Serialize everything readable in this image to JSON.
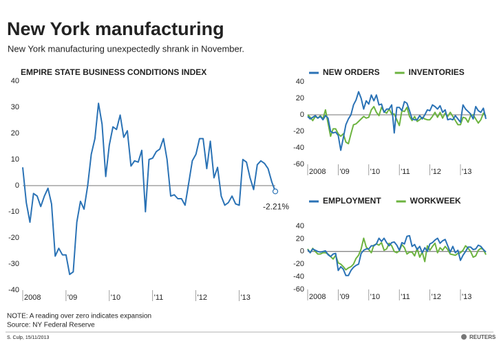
{
  "header": {
    "title": "New York manufacturing",
    "subtitle": "New York manufacturing unexpectedly shrank in November."
  },
  "chart_data": [
    {
      "type": "line",
      "title": "EMPIRE STATE BUSINESS CONDITIONS INDEX",
      "categories": [
        "2008",
        null,
        null,
        null,
        null,
        null,
        null,
        null,
        null,
        null,
        null,
        null,
        "'09",
        null,
        null,
        null,
        null,
        null,
        null,
        null,
        null,
        null,
        null,
        null,
        "'10",
        null,
        null,
        null,
        null,
        null,
        null,
        null,
        null,
        null,
        null,
        null,
        "'11",
        null,
        null,
        null,
        null,
        null,
        null,
        null,
        null,
        null,
        null,
        null,
        "'12",
        null,
        null,
        null,
        null,
        null,
        null,
        null,
        null,
        null,
        null,
        null,
        "'13",
        null,
        null,
        null,
        null,
        null,
        null,
        null,
        null,
        null,
        null
      ],
      "values": [
        7,
        -6.5,
        -14,
        -3,
        -4,
        -8,
        -4,
        -1,
        -7,
        -27,
        -24,
        -26.5,
        -26.5,
        -34,
        -33,
        -14,
        -6,
        -9,
        0,
        12,
        18,
        31.5,
        23.5,
        3.5,
        15.5,
        22.5,
        21.5,
        27,
        18.5,
        21,
        7.5,
        9.5,
        9,
        13.5,
        -10,
        10,
        10.5,
        13,
        14,
        18,
        10,
        -4,
        -3.5,
        -5,
        -5,
        -7.5,
        1,
        9.5,
        12,
        18,
        18,
        6.5,
        17,
        3,
        7,
        -4,
        -7.5,
        -6.5,
        -4,
        -7,
        -7.5,
        10,
        9,
        3,
        -1.5,
        8,
        9.5,
        8.5,
        6.5,
        1.5,
        -2.21
      ],
      "value_labels": [
        null,
        null,
        null,
        null,
        null,
        null,
        null,
        null,
        null,
        null,
        null,
        null,
        null,
        null,
        null,
        null,
        null,
        null,
        null,
        null,
        null,
        null,
        null,
        null,
        null,
        null,
        null,
        null,
        null,
        null,
        null,
        null,
        null,
        null,
        null,
        null,
        null,
        null,
        null,
        null,
        null,
        null,
        null,
        null,
        null,
        null,
        null,
        null,
        null,
        null,
        null,
        null,
        null,
        null,
        null,
        null,
        null,
        null,
        null,
        null,
        null,
        null,
        null,
        null,
        null,
        null,
        null,
        null,
        null,
        null,
        "-2.21%"
      ],
      "color": "#2a72b5",
      "ylim": [
        -40,
        40
      ],
      "yticks": [
        -40,
        -30,
        -20,
        -10,
        0,
        10,
        20,
        30,
        40
      ]
    },
    {
      "type": "line",
      "categories": [
        "2008",
        null,
        null,
        null,
        null,
        null,
        null,
        null,
        null,
        null,
        null,
        null,
        "'09",
        null,
        null,
        null,
        null,
        null,
        null,
        null,
        null,
        null,
        null,
        null,
        "'10",
        null,
        null,
        null,
        null,
        null,
        null,
        null,
        null,
        null,
        null,
        null,
        "'11",
        null,
        null,
        null,
        null,
        null,
        null,
        null,
        null,
        null,
        null,
        null,
        "'12",
        null,
        null,
        null,
        null,
        null,
        null,
        null,
        null,
        null,
        null,
        null,
        "'13",
        null,
        null,
        null,
        null,
        null,
        null,
        null,
        null,
        null,
        null
      ],
      "series": [
        {
          "name": "NEW ORDERS",
          "color": "#2a72b5",
          "values": [
            -2,
            -5,
            -3,
            -1,
            -4,
            -2,
            -6,
            -1,
            -4,
            -20,
            -22,
            -21,
            -25,
            -43,
            -28,
            -12,
            -5,
            0,
            12,
            18,
            28,
            20,
            7,
            17,
            13,
            24,
            17,
            24,
            12,
            13,
            3,
            7,
            7,
            12,
            -22,
            9,
            9,
            5,
            16,
            14,
            5,
            -5,
            -6,
            -6,
            -1,
            -5,
            0,
            6,
            5,
            12,
            10,
            7,
            11,
            3,
            6,
            -6,
            -5,
            -6,
            -1,
            -5,
            -9,
            12,
            7,
            4,
            1,
            -5,
            10,
            5,
            3,
            8,
            -5
          ]
        },
        {
          "name": "INVENTORIES",
          "color": "#6cb33f",
          "values": [
            0,
            -3,
            -7,
            -2,
            -4,
            -1,
            -5,
            6,
            -10,
            -26,
            -17,
            -17,
            -23,
            -26,
            -23,
            -33,
            -35,
            -23,
            -12,
            -11,
            -8,
            -5,
            -2,
            -4,
            -3,
            6,
            10,
            3,
            -1,
            9,
            4,
            2,
            7,
            1,
            1,
            -6,
            -13,
            5,
            4,
            9,
            -2,
            -7,
            -2,
            -8,
            -6,
            -3,
            -5,
            -6,
            -6,
            -2,
            3,
            -3,
            3,
            -4,
            2,
            -2,
            3,
            -2,
            -7,
            -12,
            -12,
            -3,
            -4,
            -9,
            -1,
            0,
            -5,
            -10,
            -6,
            2,
            -2
          ]
        }
      ],
      "ylim": [
        -60,
        40
      ],
      "yticks": [
        -60,
        -40,
        -20,
        0,
        20,
        40
      ]
    },
    {
      "type": "line",
      "categories": [
        "2008",
        null,
        null,
        null,
        null,
        null,
        null,
        null,
        null,
        null,
        null,
        null,
        "'09",
        null,
        null,
        null,
        null,
        null,
        null,
        null,
        null,
        null,
        null,
        null,
        "'10",
        null,
        null,
        null,
        null,
        null,
        null,
        null,
        null,
        null,
        null,
        null,
        "'11",
        null,
        null,
        null,
        null,
        null,
        null,
        null,
        null,
        null,
        null,
        null,
        "'12",
        null,
        null,
        null,
        null,
        null,
        null,
        null,
        null,
        null,
        null,
        null,
        "'13",
        null,
        null,
        null,
        null,
        null,
        null,
        null,
        null,
        null,
        null
      ],
      "series": [
        {
          "name": "EMPLOYMENT",
          "color": "#2a72b5",
          "values": [
            3,
            -2,
            4,
            2,
            0,
            -1,
            0,
            1,
            -5,
            -8,
            -4,
            -3,
            -30,
            -24,
            -28,
            -38,
            -38,
            -30,
            -25,
            -22,
            -20,
            -3,
            2,
            4,
            4,
            9,
            9,
            12,
            21,
            16,
            21,
            14,
            9,
            14,
            15,
            10,
            2,
            14,
            12,
            24,
            25,
            8,
            11,
            3,
            8,
            -2,
            6,
            0,
            12,
            14,
            18,
            21,
            13,
            17,
            19,
            9,
            -1,
            8,
            -2,
            2,
            -14,
            -6,
            0,
            7,
            7,
            3,
            4,
            10,
            8,
            3,
            -1
          ]
        },
        {
          "name": "WORKWEEK",
          "color": "#6cb33f",
          "values": [
            4,
            -2,
            5,
            0,
            -4,
            -4,
            -2,
            -2,
            -4,
            -8,
            -12,
            -6,
            -18,
            -20,
            -24,
            -29,
            -26,
            -24,
            -20,
            -11,
            -6,
            4,
            21,
            7,
            3,
            -2,
            10,
            12,
            10,
            14,
            2,
            4,
            13,
            9,
            0,
            -2,
            1,
            11,
            6,
            -4,
            -1,
            -1,
            -7,
            5,
            -9,
            -1,
            -16,
            9,
            2,
            8,
            13,
            -2,
            6,
            2,
            8,
            3,
            -4,
            -5,
            -6,
            -3,
            -2,
            2,
            9,
            5,
            0,
            -9,
            -7,
            2,
            5,
            3,
            -5
          ]
        }
      ],
      "ylim": [
        -60,
        40
      ],
      "yticks": [
        -60,
        -40,
        -20,
        0,
        20,
        40
      ]
    }
  ],
  "footer": {
    "note": "NOTE: A reading over zero indicates expansion",
    "source": "Source: NY Federal Reserve",
    "credit": "S. Culp, 15/11/2013",
    "logo": "REUTERS"
  }
}
